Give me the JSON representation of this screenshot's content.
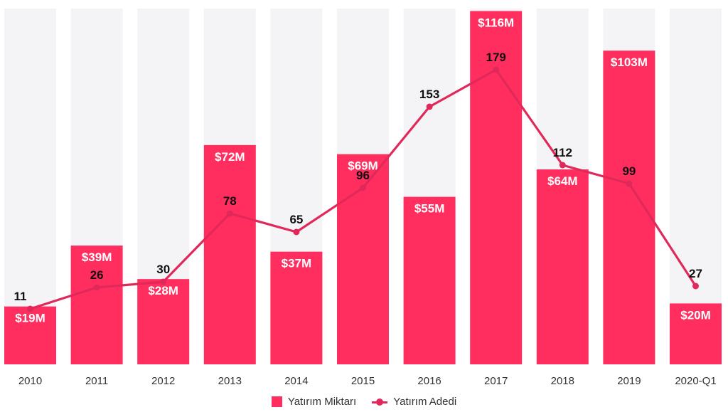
{
  "chart_data": {
    "type": "bar",
    "categories": [
      "2010",
      "2011",
      "2012",
      "2013",
      "2014",
      "2015",
      "2016",
      "2017",
      "2018",
      "2019",
      "2020-Q1"
    ],
    "series": [
      {
        "name": "Yatırım Miktarı",
        "type": "bar",
        "values": [
          19,
          39,
          28,
          72,
          37,
          69,
          55,
          116,
          64,
          103,
          20
        ],
        "labels": [
          "$19M",
          "$39M",
          "$28M",
          "$72M",
          "$37M",
          "$69M",
          "$55M",
          "$116M",
          "$64M",
          "$103M",
          "$20M"
        ],
        "color": "#ff2e5e"
      },
      {
        "name": "Yatırım Adedi",
        "type": "line",
        "values": [
          11,
          26,
          30,
          78,
          65,
          96,
          153,
          179,
          112,
          99,
          27
        ],
        "labels": [
          "11",
          "26",
          "30",
          "78",
          "65",
          "96",
          "153",
          "179",
          "112",
          "99",
          "27"
        ],
        "color": "#e0295a"
      }
    ],
    "legend": {
      "placement": "bottom-center",
      "items": [
        "Yatırım Miktarı",
        "Yatırım Adedi"
      ]
    },
    "background_bar_color": "#f4f4f6",
    "grid": false
  }
}
